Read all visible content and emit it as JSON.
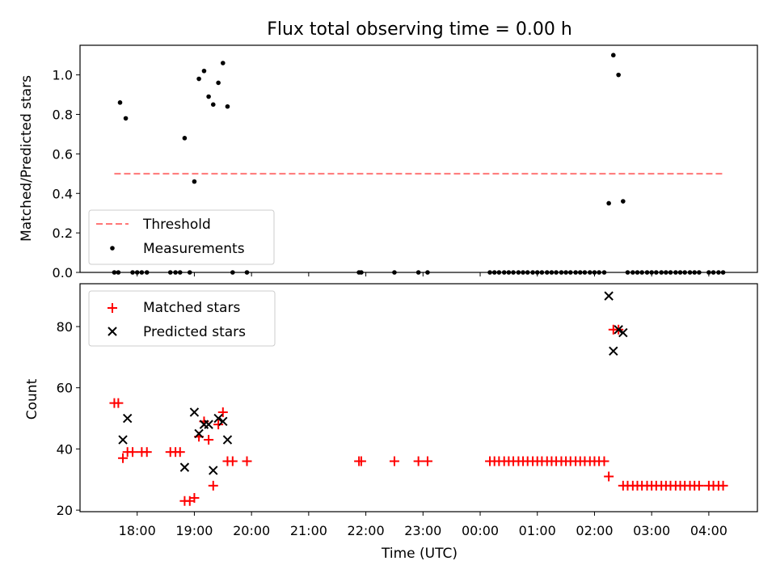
{
  "chart_data": [
    {
      "type": "scatter",
      "title": "Flux total observing time = 0.00 h",
      "xlabel": "",
      "ylabel": "Matched/Predicted stars",
      "ylim": [
        0,
        1.15
      ],
      "yticks": [
        "0.0",
        "0.2",
        "0.4",
        "0.6",
        "0.8",
        "1.0"
      ],
      "legend": {
        "placement": "lower-left",
        "entries": [
          {
            "label": "Threshold",
            "marker": "dashed-line",
            "color": "#ff7777"
          },
          {
            "label": "Measurements",
            "marker": "dot",
            "color": "#000000"
          }
        ]
      },
      "threshold": {
        "y": 0.5,
        "x_start": 17.6,
        "x_end": 28.25
      },
      "series": [
        {
          "name": "Measurements",
          "marker": "dot",
          "color": "#000000",
          "points": [
            [
              17.7,
              0.86
            ],
            [
              17.8,
              0.78
            ],
            [
              18.83,
              0.68
            ],
            [
              19.0,
              0.46
            ],
            [
              19.08,
              0.98
            ],
            [
              19.17,
              1.02
            ],
            [
              19.25,
              0.89
            ],
            [
              19.33,
              0.85
            ],
            [
              19.42,
              0.96
            ],
            [
              19.5,
              1.06
            ],
            [
              19.58,
              0.84
            ],
            [
              26.25,
              0.35
            ],
            [
              26.33,
              1.1
            ],
            [
              26.42,
              1.0
            ],
            [
              26.5,
              0.36
            ],
            [
              17.6,
              0
            ],
            [
              17.67,
              0
            ],
            [
              17.92,
              0
            ],
            [
              18.0,
              0
            ],
            [
              18.08,
              0
            ],
            [
              18.17,
              0
            ],
            [
              18.58,
              0
            ],
            [
              18.67,
              0
            ],
            [
              18.75,
              0
            ],
            [
              18.92,
              0
            ],
            [
              19.67,
              0
            ],
            [
              19.92,
              0
            ],
            [
              21.88,
              0
            ],
            [
              21.92,
              0
            ],
            [
              22.5,
              0
            ],
            [
              22.92,
              0
            ],
            [
              23.08,
              0
            ],
            [
              24.17,
              0
            ],
            [
              24.25,
              0
            ],
            [
              24.33,
              0
            ],
            [
              24.42,
              0
            ],
            [
              24.5,
              0
            ],
            [
              24.58,
              0
            ],
            [
              24.67,
              0
            ],
            [
              24.75,
              0
            ],
            [
              24.83,
              0
            ],
            [
              24.92,
              0
            ],
            [
              25.0,
              0
            ],
            [
              25.08,
              0
            ],
            [
              25.17,
              0
            ],
            [
              25.25,
              0
            ],
            [
              25.33,
              0
            ],
            [
              25.42,
              0
            ],
            [
              25.5,
              0
            ],
            [
              25.58,
              0
            ],
            [
              25.67,
              0
            ],
            [
              25.75,
              0
            ],
            [
              25.83,
              0
            ],
            [
              25.92,
              0
            ],
            [
              26.0,
              0
            ],
            [
              26.08,
              0
            ],
            [
              26.17,
              0
            ],
            [
              26.58,
              0
            ],
            [
              26.67,
              0
            ],
            [
              26.75,
              0
            ],
            [
              26.83,
              0
            ],
            [
              26.92,
              0
            ],
            [
              27.0,
              0
            ],
            [
              27.08,
              0
            ],
            [
              27.17,
              0
            ],
            [
              27.25,
              0
            ],
            [
              27.33,
              0
            ],
            [
              27.42,
              0
            ],
            [
              27.5,
              0
            ],
            [
              27.58,
              0
            ],
            [
              27.67,
              0
            ],
            [
              27.75,
              0
            ],
            [
              27.83,
              0
            ],
            [
              28.0,
              0
            ],
            [
              28.08,
              0
            ],
            [
              28.17,
              0
            ],
            [
              28.25,
              0
            ]
          ]
        }
      ]
    },
    {
      "type": "scatter",
      "title": "",
      "xlabel": "Time (UTC)",
      "ylabel": "Count",
      "ylim": [
        19.5,
        94
      ],
      "yticks": [
        "20",
        "40",
        "60",
        "80"
      ],
      "xticks": [
        "18:00",
        "19:00",
        "20:00",
        "21:00",
        "22:00",
        "23:00",
        "00:00",
        "01:00",
        "02:00",
        "03:00",
        "04:00"
      ],
      "xlim": [
        17.0,
        28.85
      ],
      "legend": {
        "placement": "upper-left",
        "entries": [
          {
            "label": "Matched stars",
            "marker": "plus",
            "color": "#ff0000"
          },
          {
            "label": "Predicted stars",
            "marker": "x",
            "color": "#000000"
          }
        ]
      },
      "series": [
        {
          "name": "Matched stars",
          "marker": "plus",
          "color": "#ff0000",
          "points": [
            [
              17.6,
              55
            ],
            [
              17.67,
              55
            ],
            [
              17.75,
              37
            ],
            [
              17.83,
              39
            ],
            [
              17.92,
              39
            ],
            [
              18.08,
              39
            ],
            [
              18.17,
              39
            ],
            [
              18.58,
              39
            ],
            [
              18.67,
              39
            ],
            [
              18.75,
              39
            ],
            [
              18.83,
              23
            ],
            [
              18.92,
              23
            ],
            [
              19.0,
              24
            ],
            [
              19.08,
              44
            ],
            [
              19.17,
              49
            ],
            [
              19.25,
              43
            ],
            [
              19.33,
              28
            ],
            [
              19.42,
              48
            ],
            [
              19.5,
              52
            ],
            [
              19.58,
              36
            ],
            [
              19.67,
              36
            ],
            [
              19.92,
              36
            ],
            [
              21.88,
              36
            ],
            [
              21.92,
              36
            ],
            [
              22.5,
              36
            ],
            [
              22.92,
              36
            ],
            [
              23.08,
              36
            ],
            [
              24.17,
              36
            ],
            [
              24.25,
              36
            ],
            [
              24.33,
              36
            ],
            [
              24.42,
              36
            ],
            [
              24.5,
              36
            ],
            [
              24.58,
              36
            ],
            [
              24.67,
              36
            ],
            [
              24.75,
              36
            ],
            [
              24.83,
              36
            ],
            [
              24.92,
              36
            ],
            [
              25.0,
              36
            ],
            [
              25.08,
              36
            ],
            [
              25.17,
              36
            ],
            [
              25.25,
              36
            ],
            [
              25.33,
              36
            ],
            [
              25.42,
              36
            ],
            [
              25.5,
              36
            ],
            [
              25.58,
              36
            ],
            [
              25.67,
              36
            ],
            [
              25.75,
              36
            ],
            [
              25.83,
              36
            ],
            [
              25.92,
              36
            ],
            [
              26.0,
              36
            ],
            [
              26.08,
              36
            ],
            [
              26.17,
              36
            ],
            [
              26.25,
              31
            ],
            [
              26.33,
              79
            ],
            [
              26.42,
              79
            ],
            [
              26.5,
              28
            ],
            [
              26.58,
              28
            ],
            [
              26.67,
              28
            ],
            [
              26.75,
              28
            ],
            [
              26.83,
              28
            ],
            [
              26.92,
              28
            ],
            [
              27.0,
              28
            ],
            [
              27.08,
              28
            ],
            [
              27.17,
              28
            ],
            [
              27.25,
              28
            ],
            [
              27.33,
              28
            ],
            [
              27.42,
              28
            ],
            [
              27.5,
              28
            ],
            [
              27.58,
              28
            ],
            [
              27.67,
              28
            ],
            [
              27.75,
              28
            ],
            [
              27.83,
              28
            ],
            [
              28.0,
              28
            ],
            [
              28.08,
              28
            ],
            [
              28.17,
              28
            ],
            [
              28.25,
              28
            ]
          ]
        },
        {
          "name": "Predicted stars",
          "marker": "x",
          "color": "#000000",
          "points": [
            [
              17.75,
              43
            ],
            [
              17.83,
              50
            ],
            [
              18.83,
              34
            ],
            [
              19.0,
              52
            ],
            [
              19.08,
              45
            ],
            [
              19.17,
              48
            ],
            [
              19.25,
              48
            ],
            [
              19.33,
              33
            ],
            [
              19.42,
              50
            ],
            [
              19.5,
              49
            ],
            [
              19.58,
              43
            ],
            [
              26.25,
              90
            ],
            [
              26.33,
              72
            ],
            [
              26.42,
              79
            ],
            [
              26.5,
              78
            ]
          ]
        }
      ]
    }
  ]
}
